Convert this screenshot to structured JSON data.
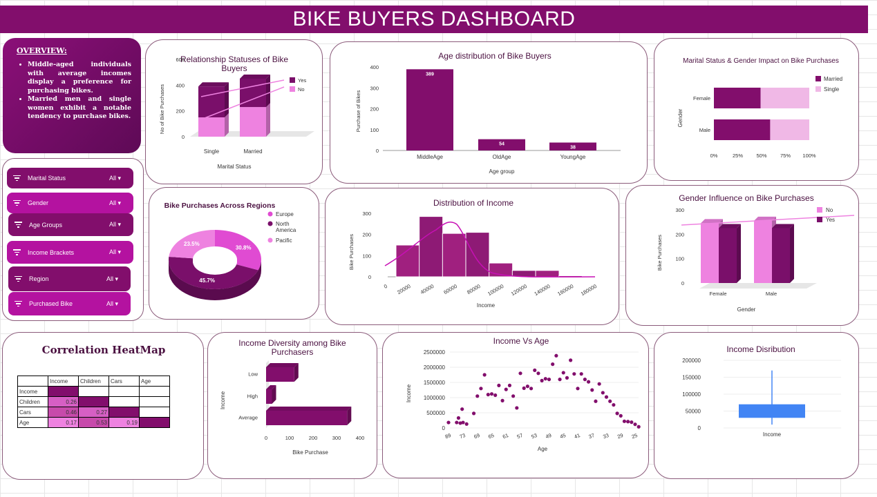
{
  "title": "BIKE BUYERS DASHBOARD",
  "overview": {
    "heading": "OVERVIEW:",
    "points": [
      "Middle-aged individuals with average incomes display a preference for purchasing bikes.",
      "Married men and single women exhibit a notable tendency to purchase bikes."
    ]
  },
  "filters": [
    {
      "label": "Marital Status",
      "value": "All"
    },
    {
      "label": "Gender",
      "value": "All"
    },
    {
      "label": "Age Groups",
      "value": "All"
    },
    {
      "label": "Income Brackets",
      "value": "All"
    },
    {
      "label": "Region",
      "value": "All"
    },
    {
      "label": "Purchased Bike",
      "value": "All"
    }
  ],
  "colors": {
    "primary": "#820e6c",
    "dark": "#7a0f6a",
    "light": "#ee82e0",
    "pink": "#e04bd2",
    "magenta": "#c710b5",
    "blue": "#4285f4"
  },
  "heatmap": {
    "title": "Correlation HeatMap",
    "headers": [
      "",
      "Income",
      "Children",
      "Cars",
      "Age"
    ],
    "rows": [
      {
        "label": "Income",
        "values": [
          "",
          "",
          "",
          ""
        ]
      },
      {
        "label": "Children",
        "values": [
          "0.26",
          "",
          "",
          ""
        ]
      },
      {
        "label": "Cars",
        "values": [
          "0.46",
          "0.27",
          "",
          ""
        ]
      },
      {
        "label": "Age",
        "values": [
          "0.17",
          "0.53",
          "0.19",
          ""
        ]
      }
    ]
  },
  "chart_data": [
    {
      "id": "relationship",
      "type": "bar",
      "title": "Relationship Statuses of Bike Buyers",
      "xlabel": "Marital Status",
      "ylabel": "No of Bike Purchases",
      "categories": [
        "Single",
        "Married"
      ],
      "series": [
        {
          "name": "Yes",
          "values": [
            240,
            220
          ]
        },
        {
          "name": "No",
          "values": [
            150,
            230
          ]
        }
      ],
      "yticks": [
        "0",
        "200",
        "400",
        "600"
      ],
      "ylim": [
        0,
        600
      ],
      "stacked": true
    },
    {
      "id": "age",
      "type": "bar",
      "title": "Age distribution of Bike Buyers",
      "xlabel": "Age group",
      "ylabel": "Purchase of Bikes",
      "categories": [
        "MiddleAge",
        "OldAge",
        "YoungAge"
      ],
      "values": [
        389,
        54,
        38
      ],
      "data_labels": [
        "389",
        "54",
        "38"
      ],
      "yticks": [
        "0",
        "100",
        "200",
        "300",
        "400"
      ],
      "ylim": [
        0,
        400
      ]
    },
    {
      "id": "marital_gender",
      "type": "bar",
      "title": "Marital Status & Gender Impact on Bike Purchases",
      "ylabel": "Gender",
      "categories": [
        "Female",
        "Male"
      ],
      "series": [
        {
          "name": "Married",
          "values": [
            49,
            59
          ]
        },
        {
          "name": "Single",
          "values": [
            51,
            41
          ]
        }
      ],
      "xticks": [
        "0%",
        "25%",
        "50%",
        "75%",
        "100%"
      ],
      "stacked_percent": true
    },
    {
      "id": "regions",
      "type": "pie",
      "title": "Bike Purchases Across Regions",
      "labels": [
        "Europe",
        "North America",
        "Pacific"
      ],
      "values": [
        30.8,
        45.7,
        23.5
      ],
      "data_labels": [
        "30.8%",
        "45.7%",
        "23.5%"
      ]
    },
    {
      "id": "income_hist",
      "type": "bar",
      "title": "Distribution of Income",
      "xlabel": "Income",
      "ylabel": "Bike Purchases",
      "bins": [
        10000,
        30000,
        50000,
        70000,
        90000,
        110000,
        130000,
        150000,
        170000
      ],
      "values": [
        150,
        285,
        205,
        210,
        65,
        30,
        30,
        5,
        3
      ],
      "xticks": [
        "0",
        "20000",
        "40000",
        "60000",
        "80000",
        "100000",
        "120000",
        "140000",
        "160000",
        "180000"
      ],
      "yticks": [
        "0",
        "100",
        "200",
        "300"
      ],
      "ylim": [
        0,
        300
      ]
    },
    {
      "id": "gender",
      "type": "bar",
      "title": "Gender Influence on Bike Purchases",
      "xlabel": "Gender",
      "ylabel": "Bike Purchases",
      "categories": [
        "Female",
        "Male"
      ],
      "series": [
        {
          "name": "No",
          "values": [
            245,
            255
          ]
        },
        {
          "name": "Yes",
          "values": [
            225,
            225
          ]
        }
      ],
      "yticks": [
        "0",
        "100",
        "200",
        "300"
      ],
      "ylim": [
        0,
        300
      ]
    },
    {
      "id": "income_diversity",
      "type": "bar",
      "title": "Income Diversity among Bike Purchasers",
      "xlabel": "Bike Purchase",
      "ylabel": "Income",
      "categories": [
        "Low",
        "High",
        "Average"
      ],
      "values": [
        120,
        25,
        345
      ],
      "xticks": [
        "0",
        "100",
        "200",
        "300",
        "400"
      ],
      "xlim": [
        0,
        400
      ]
    },
    {
      "id": "income_age",
      "type": "scatter",
      "title": "Income Vs Age",
      "xlabel": "Age",
      "ylabel": "Income",
      "xticks": [
        "89",
        "73",
        "69",
        "65",
        "61",
        "57",
        "53",
        "49",
        "45",
        "41",
        "37",
        "33",
        "29",
        "25"
      ],
      "yticks": [
        "0",
        "500000",
        "1000000",
        "1500000",
        "2000000",
        "2500000"
      ],
      "ylim": [
        0,
        2500000
      ],
      "points": [
        [
          89,
          180000
        ],
        [
          80,
          180000
        ],
        [
          78,
          330000
        ],
        [
          76,
          160000
        ],
        [
          74,
          620000
        ],
        [
          73,
          180000
        ],
        [
          72,
          130000
        ],
        [
          70,
          480000
        ],
        [
          69,
          1050000
        ],
        [
          68,
          1300000
        ],
        [
          67,
          1750000
        ],
        [
          66,
          1100000
        ],
        [
          65,
          1120000
        ],
        [
          64,
          1080000
        ],
        [
          63,
          1400000
        ],
        [
          62,
          900000
        ],
        [
          61,
          1270000
        ],
        [
          60,
          1400000
        ],
        [
          59,
          1050000
        ],
        [
          58,
          660000
        ],
        [
          57,
          1800000
        ],
        [
          56,
          1310000
        ],
        [
          55,
          1370000
        ],
        [
          54,
          1300000
        ],
        [
          53,
          1900000
        ],
        [
          52,
          1800000
        ],
        [
          51,
          1560000
        ],
        [
          50,
          1620000
        ],
        [
          49,
          1600000
        ],
        [
          48,
          2100000
        ],
        [
          47,
          2380000
        ],
        [
          46,
          1600000
        ],
        [
          45,
          1820000
        ],
        [
          44,
          1650000
        ],
        [
          43,
          2230000
        ],
        [
          42,
          1780000
        ],
        [
          41,
          1300000
        ],
        [
          40,
          1780000
        ],
        [
          39,
          1600000
        ],
        [
          38,
          1520000
        ],
        [
          37,
          1250000
        ],
        [
          36,
          880000
        ],
        [
          35,
          1450000
        ],
        [
          34,
          1160000
        ],
        [
          33,
          1020000
        ],
        [
          32,
          880000
        ],
        [
          31,
          760000
        ],
        [
          30,
          480000
        ],
        [
          29,
          400000
        ],
        [
          28,
          220000
        ],
        [
          27,
          210000
        ],
        [
          26,
          190000
        ],
        [
          25,
          120000
        ],
        [
          24,
          40000
        ]
      ]
    },
    {
      "id": "income_box",
      "type": "box",
      "title": "Income Disribution",
      "xlabel": "Income",
      "yticks": [
        "0",
        "50000",
        "100000",
        "150000",
        "200000"
      ],
      "ylim": [
        0,
        200000
      ],
      "min": 10000,
      "q1": 30000,
      "median": 60000,
      "q3": 70000,
      "max": 170000
    }
  ]
}
